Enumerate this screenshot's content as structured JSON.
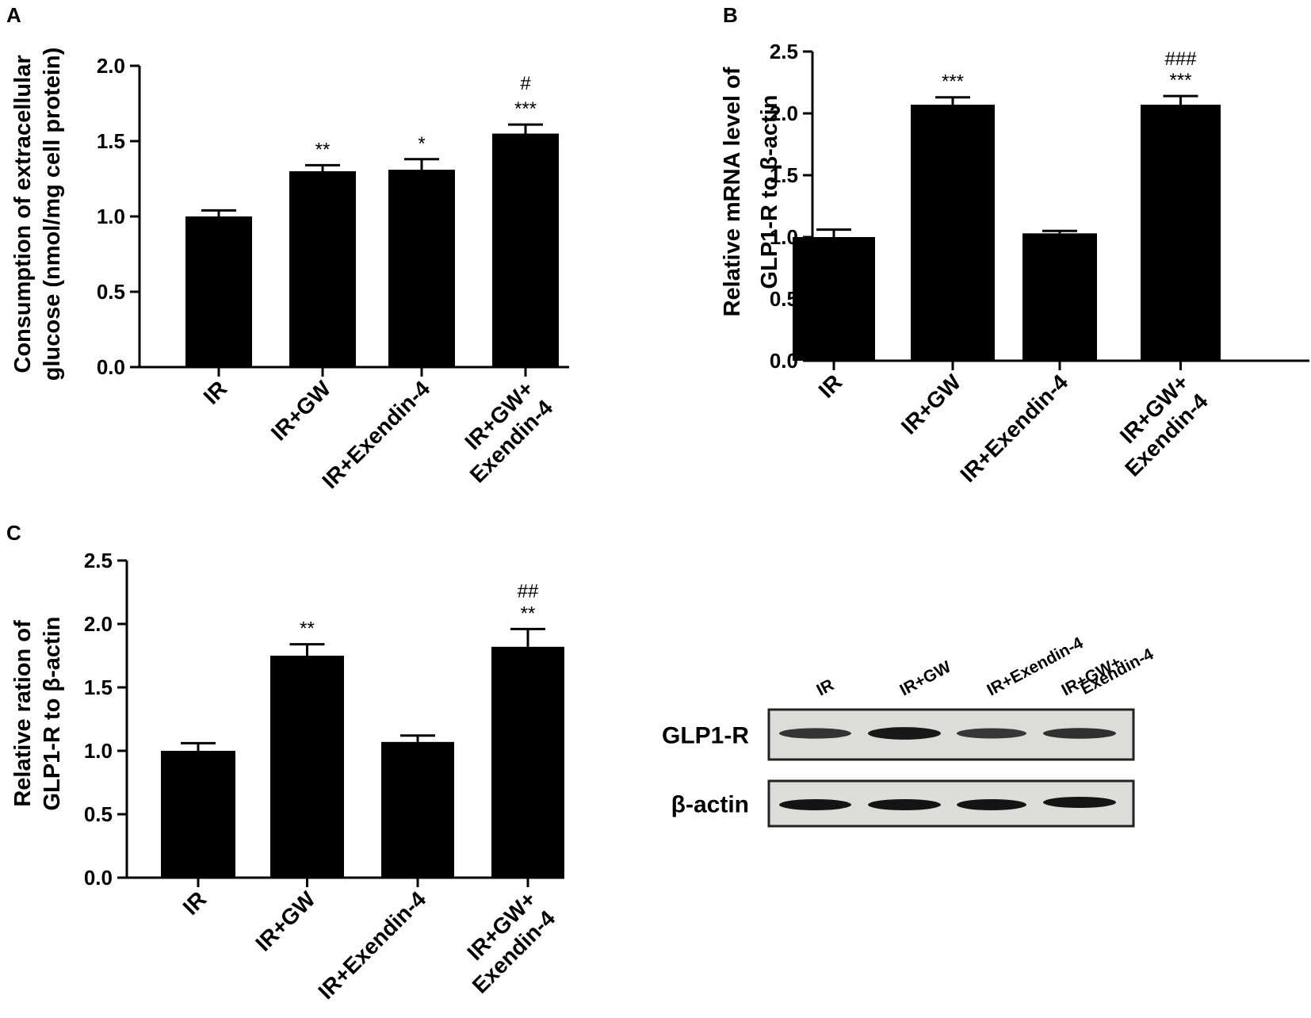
{
  "chart_data": [
    {
      "panel": "A",
      "type": "bar",
      "categories": [
        [
          "IR"
        ],
        [
          "IR+GW"
        ],
        [
          "IR+Exendin-4"
        ],
        [
          "IR+GW+",
          "Exendin-4"
        ]
      ],
      "values": [
        1.0,
        1.3,
        1.31,
        1.55
      ],
      "errors": [
        0.04,
        0.04,
        0.07,
        0.06
      ],
      "annotations": [
        [],
        [
          "**"
        ],
        [
          "*"
        ],
        [
          "#",
          "***"
        ]
      ],
      "ylabel": [
        "Consumption of extracellular",
        "glucose (nmol/mg cell protein)"
      ],
      "ylim": [
        0,
        2.0
      ],
      "yticks": [
        "0.0",
        "0.5",
        "1.0",
        "1.5",
        "2.0"
      ],
      "color": "#000000"
    },
    {
      "panel": "B",
      "type": "bar",
      "categories": [
        [
          "IR"
        ],
        [
          "IR+GW"
        ],
        [
          "IR+Exendin-4"
        ],
        [
          "IR+GW+",
          "Exendin-4"
        ]
      ],
      "values": [
        1.0,
        2.07,
        1.03,
        2.07
      ],
      "errors": [
        0.06,
        0.06,
        0.02,
        0.07
      ],
      "annotations": [
        [],
        [
          "***"
        ],
        [],
        [
          "###",
          "***"
        ]
      ],
      "ylabel": [
        "Relative mRNA level of",
        "GLP1-R to β-actin"
      ],
      "ylim": [
        0,
        2.5
      ],
      "yticks": [
        "0.0",
        "0.5",
        "1.0",
        "1.5",
        "2.0",
        "2.5"
      ],
      "color": "#000000"
    },
    {
      "panel": "C",
      "type": "bar",
      "categories": [
        [
          "IR"
        ],
        [
          "IR+GW"
        ],
        [
          "IR+Exendin-4"
        ],
        [
          "IR+GW+",
          "Exendin-4"
        ]
      ],
      "values": [
        1.0,
        1.75,
        1.07,
        1.82
      ],
      "errors": [
        0.06,
        0.09,
        0.05,
        0.14
      ],
      "annotations": [
        [],
        [
          "**"
        ],
        [],
        [
          "##",
          "**"
        ]
      ],
      "ylabel": [
        "Relative ration of",
        "GLP1-R to β-actin"
      ],
      "ylim": [
        0,
        2.5
      ],
      "yticks": [
        "0.0",
        "0.5",
        "1.0",
        "1.5",
        "2.0",
        "2.5"
      ],
      "color": "#000000"
    }
  ],
  "blot": {
    "lanes": [
      [
        "IR"
      ],
      [
        "IR+GW"
      ],
      [
        "IR+Exendin-4"
      ],
      [
        "IR+GW+",
        "Exendin-4"
      ]
    ],
    "rows": [
      {
        "label": "GLP1-R",
        "band_intensity": [
          0.55,
          0.95,
          0.5,
          0.6
        ]
      },
      {
        "label": "β-actin",
        "band_intensity": [
          1.0,
          1.0,
          1.0,
          1.0
        ]
      }
    ]
  }
}
